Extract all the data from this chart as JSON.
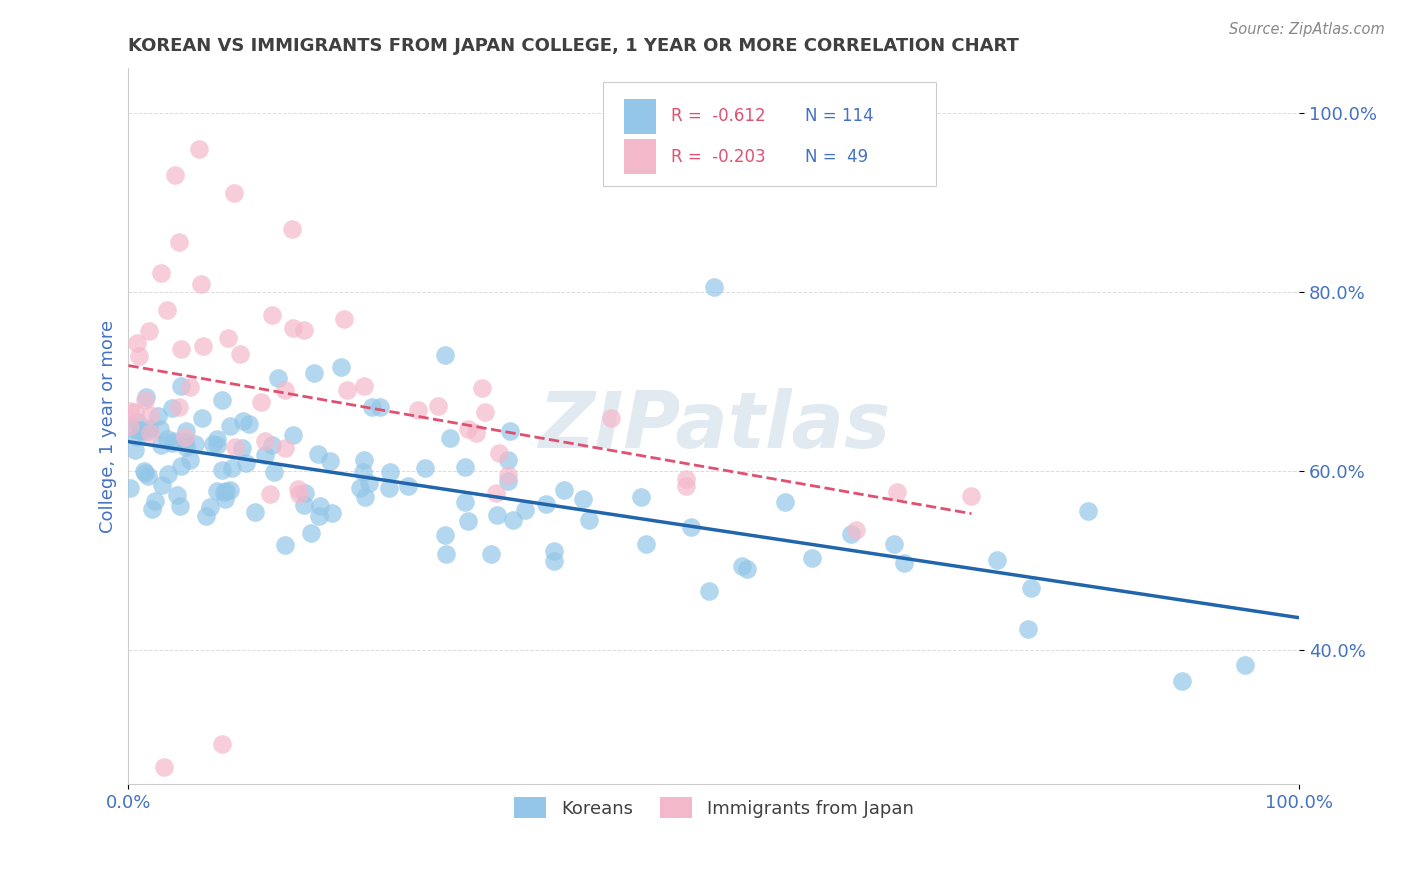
{
  "title": "KOREAN VS IMMIGRANTS FROM JAPAN COLLEGE, 1 YEAR OR MORE CORRELATION CHART",
  "source": "Source: ZipAtlas.com",
  "ylabel": "College, 1 year or more",
  "xlim": [
    0.0,
    1.0
  ],
  "ylim": [
    0.25,
    1.05
  ],
  "x_ticks": [
    0.0,
    1.0
  ],
  "x_tick_labels": [
    "0.0%",
    "100.0%"
  ],
  "y_ticks": [
    0.4,
    0.6,
    0.8,
    1.0
  ],
  "y_tick_labels": [
    "40.0%",
    "60.0%",
    "80.0%",
    "100.0%"
  ],
  "blue_color": "#93c6e8",
  "pink_color": "#f4b8cb",
  "blue_line_color": "#2166ac",
  "pink_line_color": "#e05070",
  "watermark": "ZIPatlas",
  "title_color": "#404040",
  "axis_label_color": "#4472c4",
  "tick_label_color": "#4472c4",
  "r_color": "#e05070",
  "n_color": "#4472c4",
  "grid_color": "#cccccc",
  "legend_r1": "R =  -0.612",
  "legend_n1": "N = 114",
  "legend_r2": "R =  -0.203",
  "legend_n2": "N =  49",
  "legend_label1": "Koreans",
  "legend_label2": "Immigrants from Japan",
  "blue_n": 114,
  "blue_r": -0.612,
  "pink_n": 49,
  "pink_r": -0.203
}
